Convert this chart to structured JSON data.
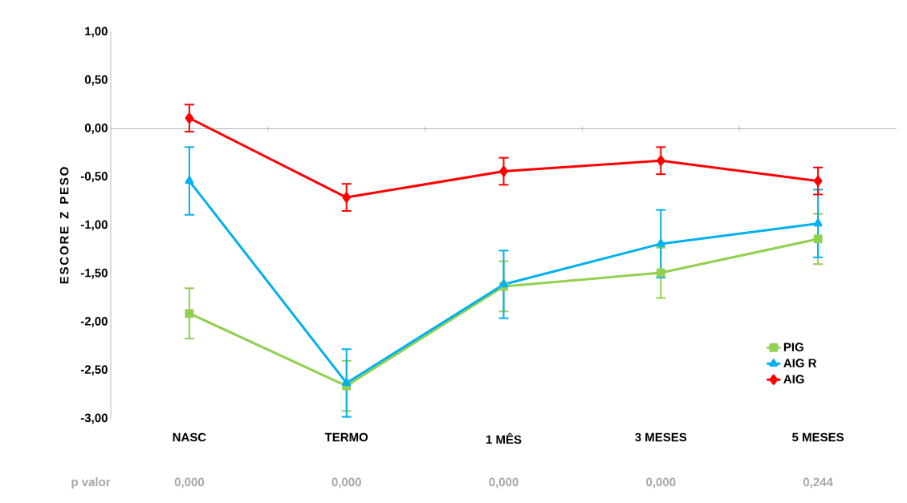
{
  "chart_data": {
    "type": "line",
    "ylabel": "ESCORE Z PESO",
    "categories": [
      "NASC",
      "TERMO",
      "1 MÊS",
      "3 MESES",
      "5 MESES"
    ],
    "series": [
      {
        "name": "PIG",
        "color": "#92d050",
        "marker": "square",
        "values": [
          -1.91,
          -2.66,
          -1.63,
          -1.49,
          -1.14
        ],
        "errors": [
          0.26,
          0.26,
          0.26,
          0.26,
          0.26
        ]
      },
      {
        "name": "AIG R",
        "color": "#00b0f0",
        "marker": "triangle",
        "values": [
          -0.54,
          -2.63,
          -1.61,
          -1.19,
          -0.98
        ],
        "errors": [
          0.35,
          0.35,
          0.35,
          0.35,
          0.35
        ]
      },
      {
        "name": "AIG",
        "color": "#ff0000",
        "marker": "diamond",
        "values": [
          0.11,
          -0.71,
          -0.44,
          -0.33,
          -0.54
        ],
        "errors": [
          0.14,
          0.14,
          0.14,
          0.14,
          0.14
        ]
      }
    ],
    "ylim": [
      -3,
      1
    ],
    "yticks": [
      {
        "value": -3,
        "label": "-3,00"
      },
      {
        "value": -2.5,
        "label": "-2,50"
      },
      {
        "value": -2,
        "label": "-2,00"
      },
      {
        "value": -1.5,
        "label": "-1,50"
      },
      {
        "value": -1,
        "label": "-1,00"
      },
      {
        "value": -0.5,
        "label": "-0,50"
      },
      {
        "value": 0,
        "label": "0,00"
      },
      {
        "value": 0.5,
        "label": "0,50"
      },
      {
        "value": 1,
        "label": "1,00"
      }
    ],
    "legend": "bottom right",
    "ref_lines": [
      {
        "axis": "y",
        "value": 0,
        "color": "#a6a6a6"
      }
    ],
    "annotations": [
      "p valor",
      "0,000",
      "0,000",
      "0,000",
      "0,000",
      "0,244"
    ]
  }
}
